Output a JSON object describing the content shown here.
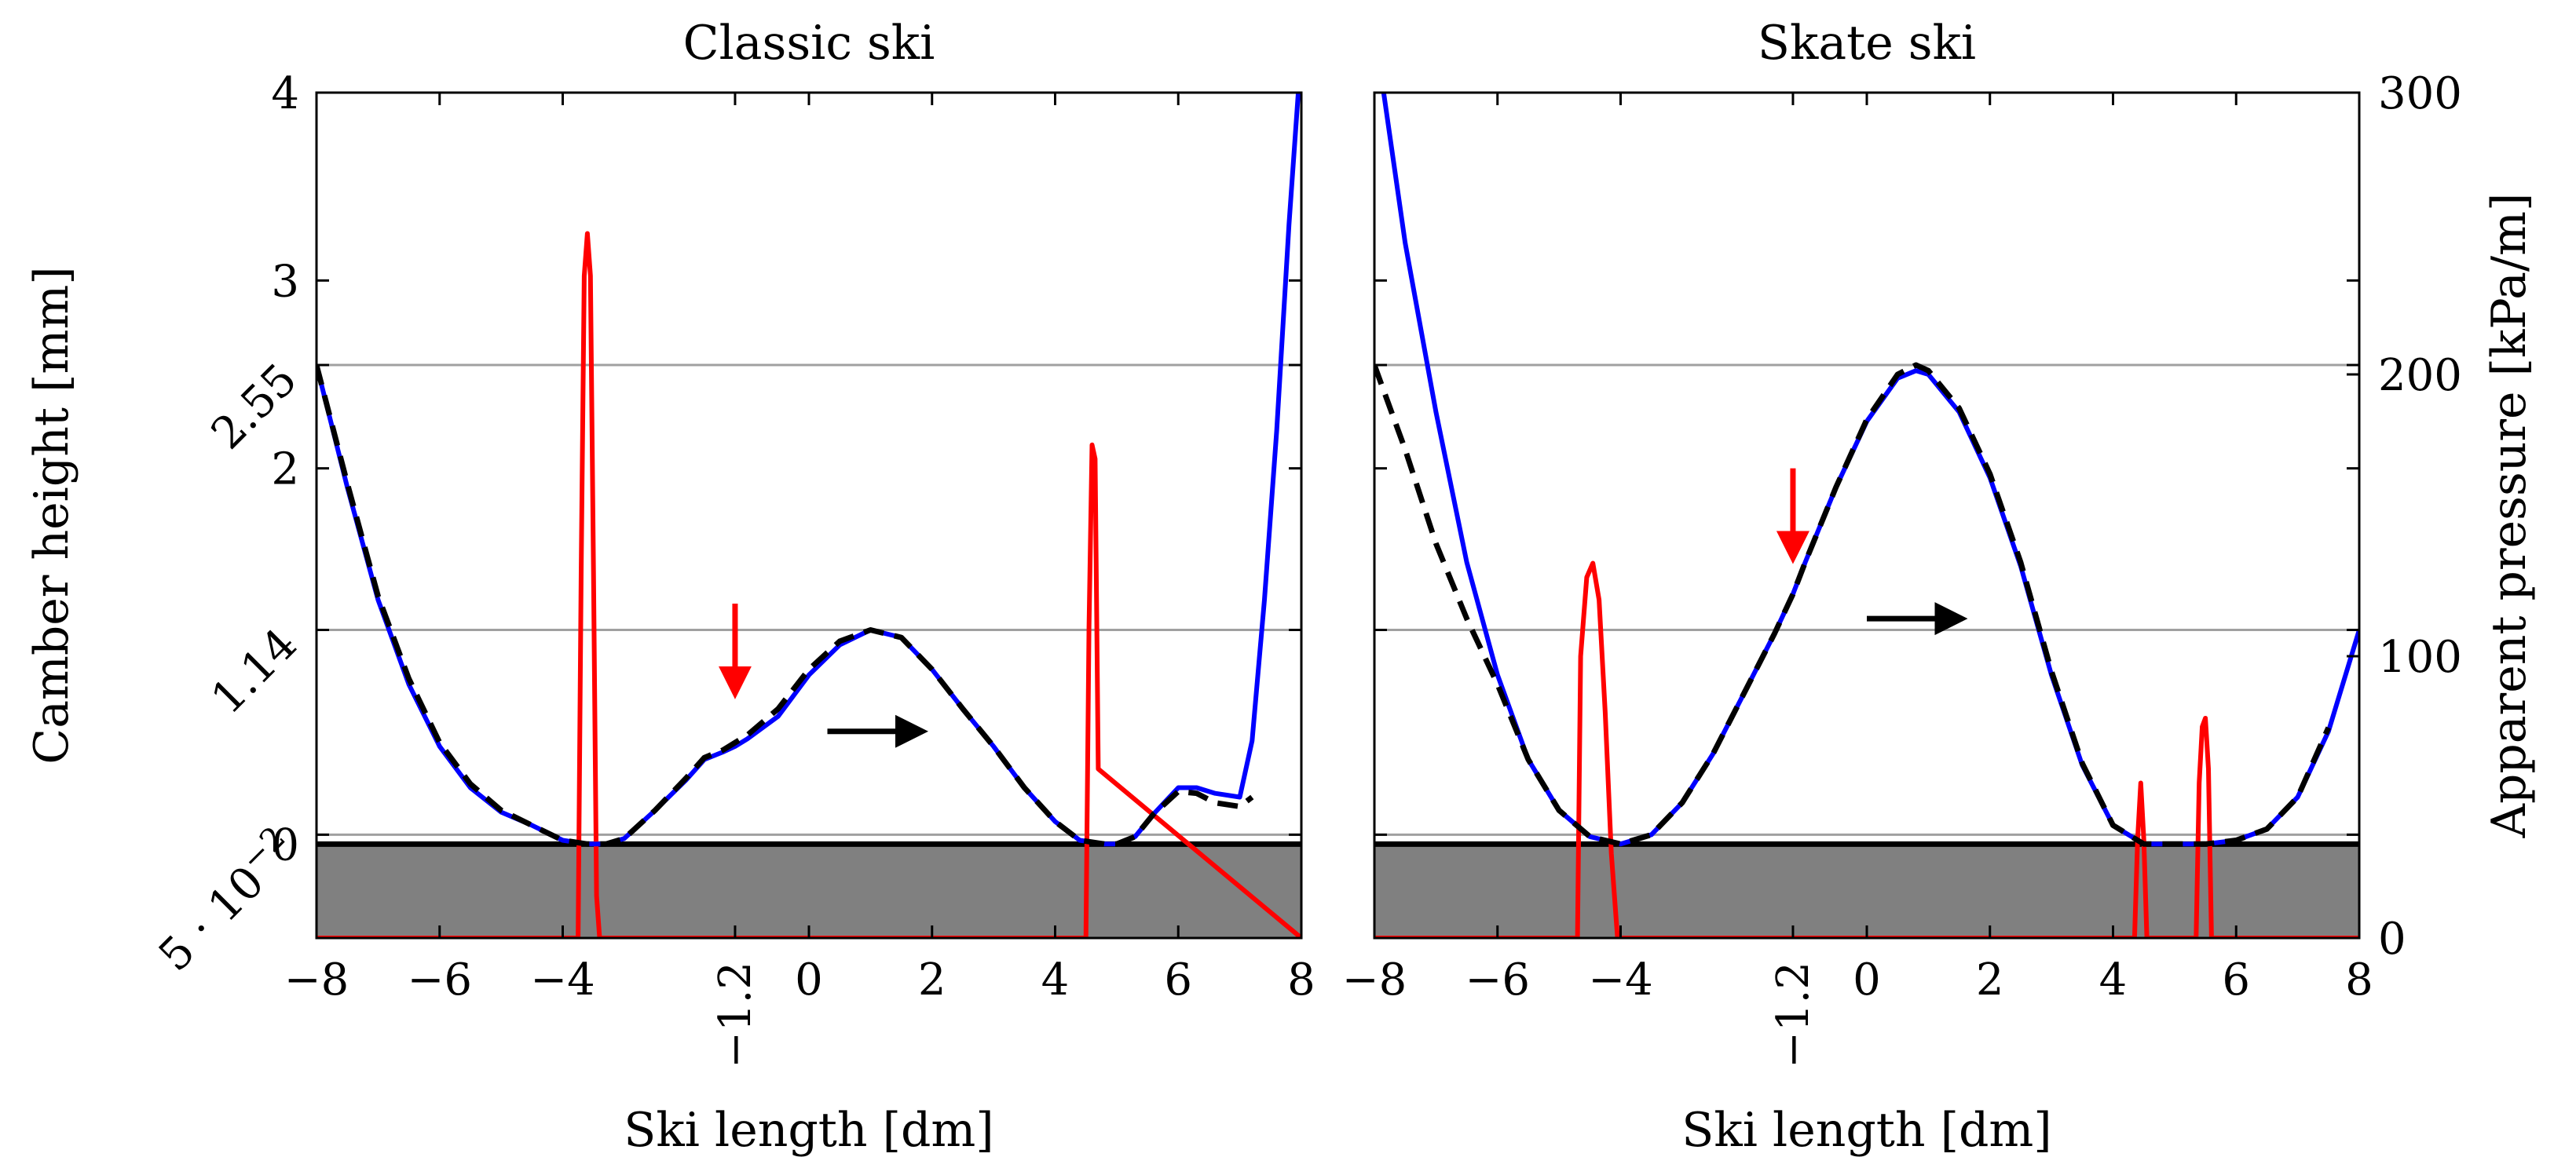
{
  "chart_data": {
    "type": "line",
    "shared": {
      "xlabel": "Ski length [dm]",
      "ylabel_left": "Camber height [mm]",
      "ylabel_right": "Apparent pressure [kPa/m]",
      "xlim": [
        -8,
        8
      ],
      "ylim_left": [
        -0.5,
        4
      ],
      "ylim_right": [
        0,
        300
      ],
      "xticks": [
        -8,
        -6,
        -4,
        -1.2,
        0,
        2,
        4,
        6,
        8
      ],
      "xtick_labels": [
        "−8",
        "−6",
        "−4",
        "−1.2",
        "0",
        "2",
        "4",
        "6",
        "8"
      ],
      "yticks_left": [
        0,
        0.05,
        1.14,
        2,
        2.55,
        3,
        4
      ],
      "ytick_labels_left": [
        "0",
        "5 · 10",
        "1.14",
        "2",
        "2.55",
        "3",
        "4"
      ],
      "ytick_sci_exponent": "−2",
      "yticks_right": [
        0,
        100,
        200,
        300
      ],
      "ytick_labels_right": [
        "0",
        "100",
        "200",
        "300"
      ],
      "hlines": [
        0.05,
        1.14,
        2.55
      ],
      "ground_level": 0,
      "ground_color": "#808080",
      "colors": {
        "camber_solid": "#0000ff",
        "camber_dashed": "#000000",
        "pressure": "#ff0000",
        "grid": "#a0a0a0"
      }
    },
    "panels": [
      {
        "title": "Classic ski",
        "series": [
          {
            "name": "camber height (blue)",
            "axis": "left",
            "style": "solid",
            "x": [
              -8,
              -7.5,
              -7,
              -6.5,
              -6,
              -5.5,
              -5,
              -4.5,
              -4,
              -3.6,
              -3.3,
              -3,
              -2.5,
              -2,
              -1.7,
              -1.4,
              -1.2,
              -1,
              -0.5,
              0,
              0.5,
              1,
              1.5,
              2,
              2.5,
              3,
              3.5,
              4,
              4.4,
              4.8,
              5,
              5.3,
              5.6,
              6,
              6.3,
              6.6,
              7,
              7.2,
              7.4,
              7.6,
              7.8,
              7.95
            ],
            "y": [
              2.55,
              1.9,
              1.3,
              0.85,
              0.52,
              0.3,
              0.17,
              0.1,
              0.02,
              0.0,
              0.0,
              0.03,
              0.18,
              0.34,
              0.45,
              0.49,
              0.52,
              0.56,
              0.68,
              0.9,
              1.06,
              1.14,
              1.1,
              0.93,
              0.72,
              0.52,
              0.3,
              0.12,
              0.02,
              0.0,
              0.0,
              0.04,
              0.16,
              0.3,
              0.3,
              0.27,
              0.25,
              0.55,
              1.3,
              2.2,
              3.3,
              4.0
            ]
          },
          {
            "name": "camber height (dashed reference)",
            "axis": "left",
            "style": "dashed",
            "x": [
              -8,
              -7.5,
              -7,
              -6.5,
              -6,
              -5.5,
              -5,
              -4.5,
              -4,
              -3.6,
              -3.3,
              -3,
              -2.5,
              -2,
              -1.7,
              -1.4,
              -1.2,
              -1,
              -0.5,
              0,
              0.5,
              1,
              1.5,
              2,
              2.5,
              3,
              3.5,
              4,
              4.4,
              4.8,
              5,
              5.3,
              5.6,
              6,
              6.3,
              6.6,
              7,
              7.2
            ],
            "y": [
              2.55,
              1.92,
              1.32,
              0.88,
              0.54,
              0.32,
              0.18,
              0.1,
              0.02,
              0.0,
              0.0,
              0.03,
              0.18,
              0.35,
              0.46,
              0.5,
              0.54,
              0.58,
              0.72,
              0.93,
              1.08,
              1.14,
              1.1,
              0.93,
              0.72,
              0.52,
              0.3,
              0.12,
              0.02,
              0.0,
              0.0,
              0.04,
              0.16,
              0.28,
              0.27,
              0.22,
              0.2,
              0.25
            ]
          },
          {
            "name": "apparent pressure (red)",
            "axis": "right",
            "style": "solid",
            "x": [
              -8,
              -3.75,
              -3.7,
              -3.65,
              -3.6,
              -3.55,
              -3.5,
              -3.45,
              -3.4,
              4.5,
              4.55,
              4.6,
              4.65,
              4.7,
              8
            ],
            "y": [
              0,
              0,
              130,
              235,
              250,
              235,
              130,
              15,
              0,
              0,
              110,
              175,
              170,
              60,
              0
            ]
          }
        ],
        "annotations": [
          {
            "shape": "arrow-down",
            "color": "#ff0000",
            "x": -1.2,
            "y_from": 1.28,
            "y_to": 0.8
          },
          {
            "shape": "arrow-right",
            "color": "#000000",
            "x_from": 0.3,
            "x_to": 1.85,
            "y": 0.6
          }
        ]
      },
      {
        "title": "Skate ski",
        "series": [
          {
            "name": "camber height (blue)",
            "axis": "left",
            "style": "solid",
            "x": [
              -7.85,
              -7.5,
              -7,
              -6.5,
              -6,
              -5.5,
              -5,
              -4.5,
              -4,
              -3.5,
              -3,
              -2.5,
              -2,
              -1.5,
              -1.2,
              -1,
              -0.5,
              0,
              0.5,
              0.8,
              1,
              1.5,
              2,
              2.5,
              3,
              3.5,
              4,
              4.5,
              5,
              5.5,
              6,
              6.5,
              7,
              7.5,
              8
            ],
            "y": [
              4.0,
              3.2,
              2.3,
              1.5,
              0.9,
              0.45,
              0.18,
              0.04,
              0.0,
              0.05,
              0.22,
              0.48,
              0.8,
              1.12,
              1.33,
              1.5,
              1.9,
              2.25,
              2.48,
              2.52,
              2.5,
              2.3,
              1.95,
              1.48,
              0.9,
              0.42,
              0.1,
              0.0,
              0.0,
              0.0,
              0.02,
              0.08,
              0.25,
              0.6,
              1.14
            ]
          },
          {
            "name": "camber height (dashed reference)",
            "axis": "left",
            "style": "dashed",
            "x": [
              -8,
              -7.5,
              -7,
              -6.5,
              -6,
              -5.5,
              -5,
              -4.5,
              -4,
              -3.5,
              -3,
              -2.5,
              -2,
              -1.5,
              -1.2,
              -1,
              -0.5,
              0,
              0.5,
              0.8,
              1,
              1.5,
              2,
              2.5,
              3,
              3.5,
              4,
              4.5,
              5,
              5.5,
              6,
              6.5,
              7,
              7.5
            ],
            "y": [
              2.55,
              2.1,
              1.6,
              1.2,
              0.85,
              0.45,
              0.18,
              0.04,
              0.0,
              0.05,
              0.22,
              0.48,
              0.8,
              1.12,
              1.33,
              1.5,
              1.9,
              2.26,
              2.5,
              2.55,
              2.52,
              2.32,
              1.97,
              1.5,
              0.92,
              0.43,
              0.1,
              0.0,
              0.0,
              0.0,
              0.02,
              0.08,
              0.25,
              0.62
            ]
          },
          {
            "name": "apparent pressure (red)",
            "axis": "right",
            "style": "solid",
            "x": [
              -8,
              -4.7,
              -4.65,
              -4.55,
              -4.45,
              -4.35,
              -4.25,
              -4.15,
              -4.05,
              4.35,
              4.4,
              4.45,
              4.5,
              4.55,
              5.35,
              5.4,
              5.45,
              5.5,
              5.55,
              5.6,
              8
            ],
            "y": [
              0,
              0,
              100,
              128,
              133,
              120,
              80,
              30,
              0,
              0,
              35,
              55,
              35,
              0,
              0,
              55,
              75,
              78,
              60,
              0,
              0
            ]
          }
        ],
        "annotations": [
          {
            "shape": "arrow-down",
            "color": "#ff0000",
            "x": -1.2,
            "y_from": 2.0,
            "y_to": 1.52
          },
          {
            "shape": "arrow-right",
            "color": "#000000",
            "x_from": 0.0,
            "x_to": 1.55,
            "y": 1.2
          }
        ]
      }
    ]
  }
}
